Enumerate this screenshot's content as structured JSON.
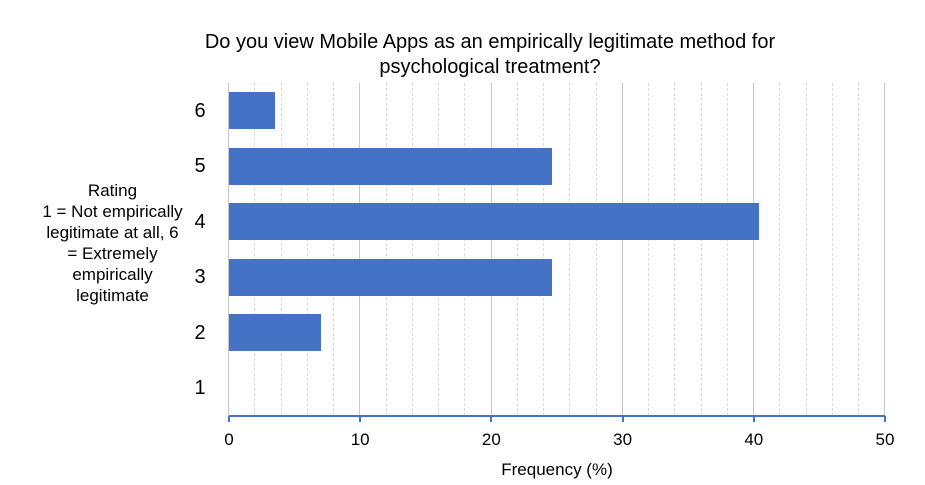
{
  "chart_data": {
    "type": "bar",
    "orientation": "horizontal",
    "title": "Do you view Mobile Apps as an empirically legitimate method for psychological treatment?",
    "xlabel": "Frequency (%)",
    "ylabel": "Rating 1 = Not empirically legitimate at all, 6 = Extremely empirically legitimate",
    "categories": [
      "1",
      "2",
      "3",
      "4",
      "5",
      "6"
    ],
    "values": [
      0,
      7.0,
      24.6,
      40.4,
      24.6,
      3.5
    ],
    "xlim": [
      0,
      50
    ],
    "x_ticks": [
      0,
      10,
      20,
      30,
      40,
      50
    ],
    "grid": {
      "major_step": 10,
      "minor_step": 2,
      "axis": "x"
    },
    "legend": null,
    "bar_color": "#4472C4"
  },
  "title_lines": [
    "Do you view Mobile Apps as an empirically legitimate method for",
    "psychological treatment?"
  ],
  "ylabel_lines": [
    "Rating",
    "1 = Not empirically",
    "legitimate at all, 6",
    "= Extremely",
    "empirically",
    "legitimate"
  ],
  "x_tick_labels": [
    "0",
    "10",
    "20",
    "30",
    "40",
    "50"
  ],
  "xlabel": "Frequency (%)",
  "colors": {
    "bar": "#4472C4",
    "axis": "#4472C4",
    "grid_major": "#C8C8C8",
    "grid_minor": "#D9D9D9"
  }
}
